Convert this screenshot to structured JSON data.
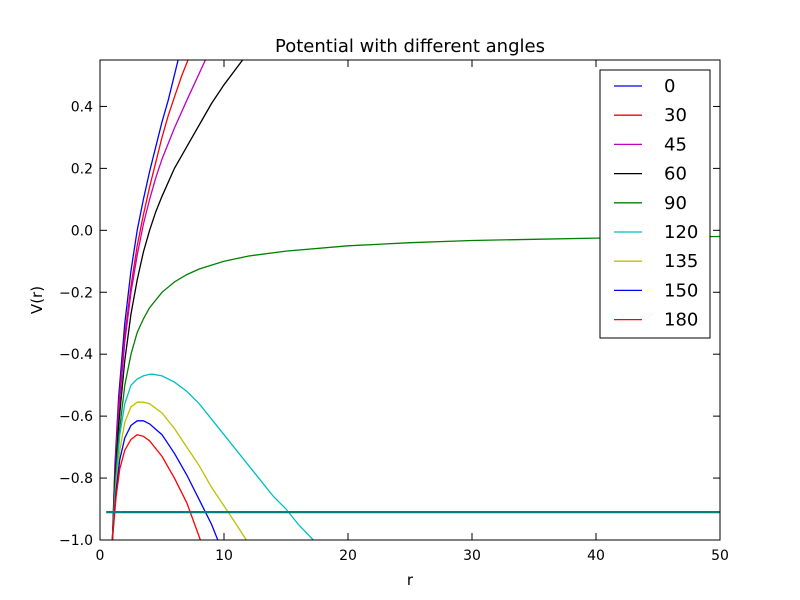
{
  "chart_data": {
    "type": "line",
    "title": "Potential with different angles",
    "xlabel": "r",
    "ylabel": "V(r)",
    "xlim": [
      0,
      50
    ],
    "ylim": [
      -1.0,
      0.55
    ],
    "xticks": [
      0,
      10,
      20,
      30,
      40,
      50
    ],
    "xtick_labels": [
      "0",
      "10",
      "20",
      "30",
      "40",
      "50"
    ],
    "yticks": [
      -1.0,
      -0.8,
      -0.6,
      -0.4,
      -0.2,
      0.0,
      0.2,
      0.4
    ],
    "ytick_labels": [
      "−1.0",
      "−0.8",
      "−0.6",
      "−0.4",
      "−0.2",
      "0.0",
      "0.2",
      "0.4"
    ],
    "grid": false,
    "legend_position": "top-right",
    "reference_line": {
      "y": -0.91,
      "color": "#008080"
    },
    "series": [
      {
        "name": "0",
        "color": "#0000ff",
        "x": [
          1,
          1.2,
          1.5,
          2,
          2.5,
          3,
          3.5,
          4,
          4.5,
          5,
          5.5,
          6.3
        ],
        "y": [
          -1.0,
          -0.76,
          -0.54,
          -0.3,
          -0.13,
          0.0,
          0.1,
          0.19,
          0.27,
          0.35,
          0.42,
          0.55
        ]
      },
      {
        "name": "30",
        "color": "#ff0000",
        "x": [
          1,
          1.2,
          1.5,
          2,
          2.5,
          3,
          3.5,
          4,
          4.5,
          5,
          5.5,
          6,
          6.6,
          7.1
        ],
        "y": [
          -1.0,
          -0.78,
          -0.57,
          -0.34,
          -0.18,
          -0.05,
          0.05,
          0.14,
          0.22,
          0.3,
          0.37,
          0.43,
          0.5,
          0.55
        ]
      },
      {
        "name": "45",
        "color": "#bf00bf",
        "x": [
          1,
          1.2,
          1.5,
          2,
          2.5,
          3,
          3.5,
          4,
          4.5,
          5,
          5.5,
          6,
          7,
          8.5
        ],
        "y": [
          -1.0,
          -0.79,
          -0.59,
          -0.36,
          -0.2,
          -0.08,
          0.02,
          0.1,
          0.17,
          0.23,
          0.28,
          0.33,
          0.42,
          0.55
        ]
      },
      {
        "name": "60",
        "color": "#000000",
        "x": [
          1,
          1.2,
          1.5,
          2,
          2.5,
          3,
          3.5,
          4,
          4.5,
          5,
          6,
          7,
          8,
          9,
          10,
          11.5
        ],
        "y": [
          -1.0,
          -0.81,
          -0.63,
          -0.42,
          -0.27,
          -0.16,
          -0.07,
          0.0,
          0.06,
          0.11,
          0.2,
          0.27,
          0.34,
          0.41,
          0.47,
          0.55
        ]
      },
      {
        "name": "90",
        "color": "#008000",
        "x": [
          1,
          1.2,
          1.5,
          2,
          2.5,
          3,
          3.5,
          4,
          5,
          6,
          7,
          8,
          10,
          12,
          15,
          20,
          25,
          30,
          35,
          40,
          45,
          50
        ],
        "y": [
          -1.0,
          -0.83,
          -0.67,
          -0.5,
          -0.4,
          -0.33,
          -0.286,
          -0.25,
          -0.2,
          -0.167,
          -0.143,
          -0.125,
          -0.1,
          -0.083,
          -0.067,
          -0.05,
          -0.04,
          -0.033,
          -0.029,
          -0.025,
          -0.022,
          -0.02
        ]
      },
      {
        "name": "120",
        "color": "#00bfbf",
        "x": [
          1,
          1.3,
          1.6,
          2,
          2.5,
          3,
          3.5,
          4,
          4.3,
          5,
          6,
          7,
          8,
          9,
          10,
          11,
          12,
          13,
          14,
          15,
          16,
          17.2
        ],
        "y": [
          -1.0,
          -0.8,
          -0.66,
          -0.56,
          -0.5,
          -0.48,
          -0.47,
          -0.465,
          -0.465,
          -0.47,
          -0.49,
          -0.52,
          -0.56,
          -0.61,
          -0.66,
          -0.71,
          -0.76,
          -0.81,
          -0.86,
          -0.9,
          -0.95,
          -1.0
        ]
      },
      {
        "name": "135",
        "color": "#bfbf00",
        "x": [
          1,
          1.3,
          1.6,
          2,
          2.5,
          3,
          3.5,
          4,
          5,
          6,
          7,
          8,
          9,
          10,
          11,
          11.8
        ],
        "y": [
          -1.0,
          -0.82,
          -0.71,
          -0.62,
          -0.57,
          -0.555,
          -0.555,
          -0.56,
          -0.59,
          -0.64,
          -0.7,
          -0.76,
          -0.83,
          -0.89,
          -0.95,
          -1.0
        ]
      },
      {
        "name": "150",
        "color": "#0000ff",
        "x": [
          1,
          1.3,
          1.6,
          2,
          2.5,
          3,
          3.5,
          4,
          5,
          6,
          7,
          8,
          9,
          9.5
        ],
        "y": [
          -1.0,
          -0.84,
          -0.74,
          -0.67,
          -0.63,
          -0.615,
          -0.615,
          -0.625,
          -0.66,
          -0.72,
          -0.79,
          -0.87,
          -0.95,
          -1.0
        ]
      },
      {
        "name": "180",
        "color": "#ff0000",
        "x": [
          1,
          1.3,
          1.6,
          2,
          2.5,
          3,
          3.5,
          4,
          5,
          6,
          7,
          8.1
        ],
        "y": [
          -1.0,
          -0.86,
          -0.77,
          -0.71,
          -0.675,
          -0.66,
          -0.665,
          -0.68,
          -0.73,
          -0.8,
          -0.88,
          -1.0
        ]
      }
    ]
  }
}
